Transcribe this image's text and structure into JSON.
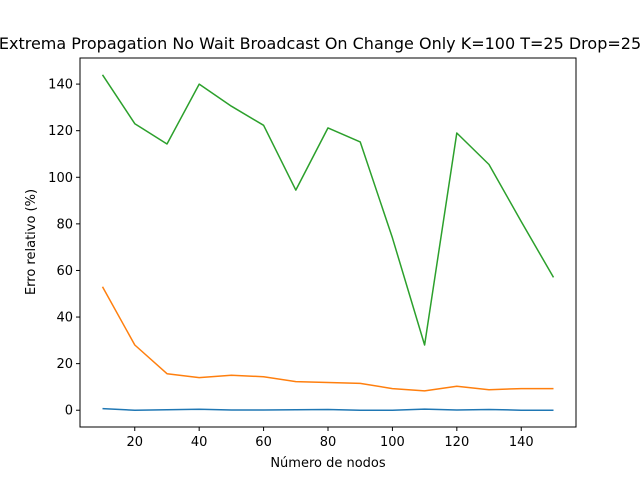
{
  "chart_data": {
    "type": "line",
    "title": "Extrema Propagation No Wait Broadcast On Change Only K=100 T=25 Drop=25",
    "xlabel": "Número de nodos",
    "ylabel": "Erro relativo (%)",
    "x": [
      10,
      20,
      30,
      40,
      50,
      60,
      70,
      80,
      90,
      100,
      110,
      120,
      130,
      140,
      150
    ],
    "xlim": [
      3,
      157
    ],
    "ylim": [
      -7.2,
      151.2
    ],
    "xticks": [
      20,
      40,
      60,
      80,
      100,
      120,
      140
    ],
    "yticks": [
      0,
      20,
      40,
      60,
      80,
      100,
      120,
      140
    ],
    "grid": false,
    "series": [
      {
        "color": "#1f77b4",
        "values": [
          0.7,
          0.0,
          0.2,
          0.4,
          0.1,
          0.1,
          0.2,
          0.3,
          0.0,
          0.0,
          0.5,
          0.1,
          0.3,
          0.0,
          0.0
        ]
      },
      {
        "color": "#ff7f0e",
        "values": [
          53.0,
          28.0,
          15.7,
          14.0,
          15.0,
          14.4,
          12.3,
          11.9,
          11.5,
          9.3,
          8.3,
          10.3,
          8.8,
          9.3,
          9.3
        ]
      },
      {
        "color": "#2ca02c",
        "values": [
          144.0,
          123.0,
          114.3,
          140.0,
          130.5,
          122.3,
          94.5,
          121.2,
          115.2,
          74.0,
          28.0,
          119.0,
          105.5,
          81.0,
          57.0
        ]
      }
    ]
  }
}
